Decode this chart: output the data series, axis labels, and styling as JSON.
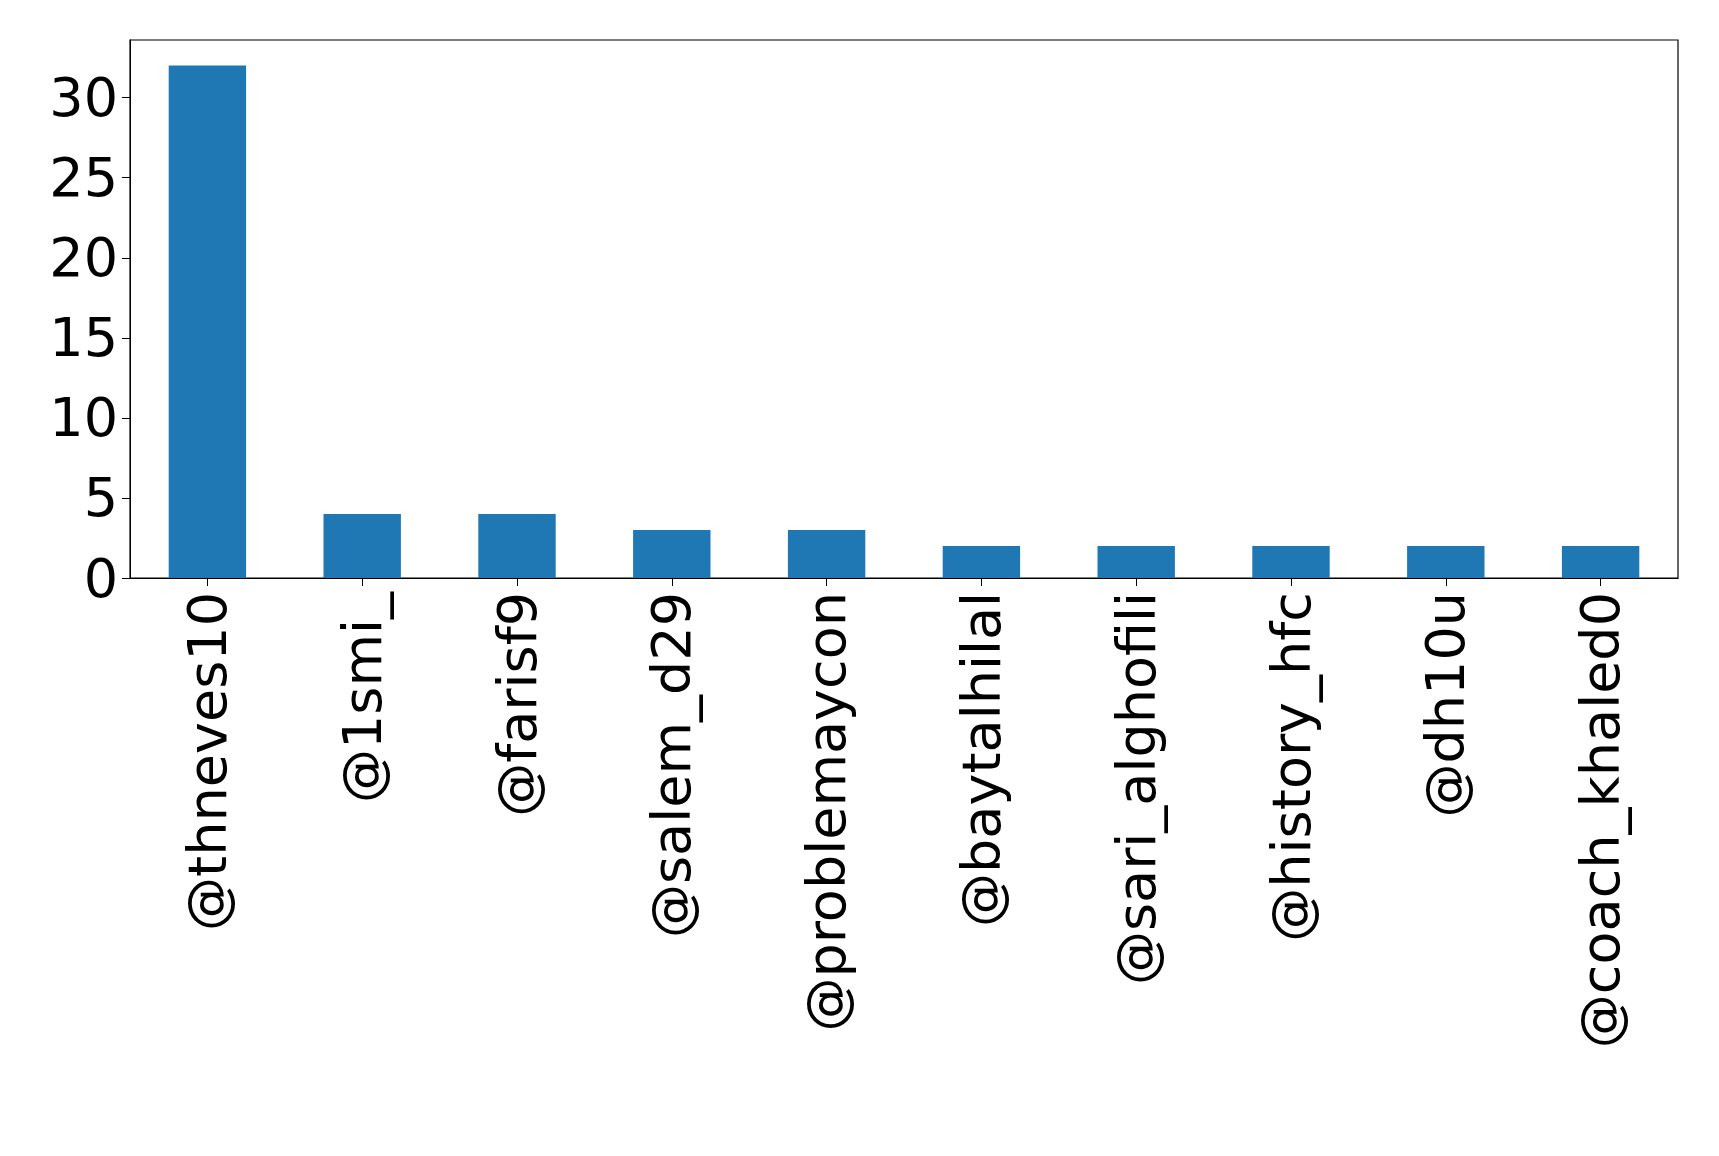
{
  "chart_data": {
    "type": "bar",
    "categories": [
      "@thneves10",
      "@1smi_",
      "@farisf9",
      "@salem_d29",
      "@problemaycon",
      "@baytalhilal",
      "@sari_alghofili",
      "@history_hfc",
      "@dh10u",
      "@coach_khaled0"
    ],
    "values": [
      32,
      4,
      4,
      3,
      3,
      2,
      2,
      2,
      2,
      2
    ],
    "color": "#1f77b4",
    "ylim": [
      0,
      33.6
    ],
    "yticks": [
      0,
      5,
      10,
      15,
      20,
      25,
      30
    ],
    "grid": false
  }
}
